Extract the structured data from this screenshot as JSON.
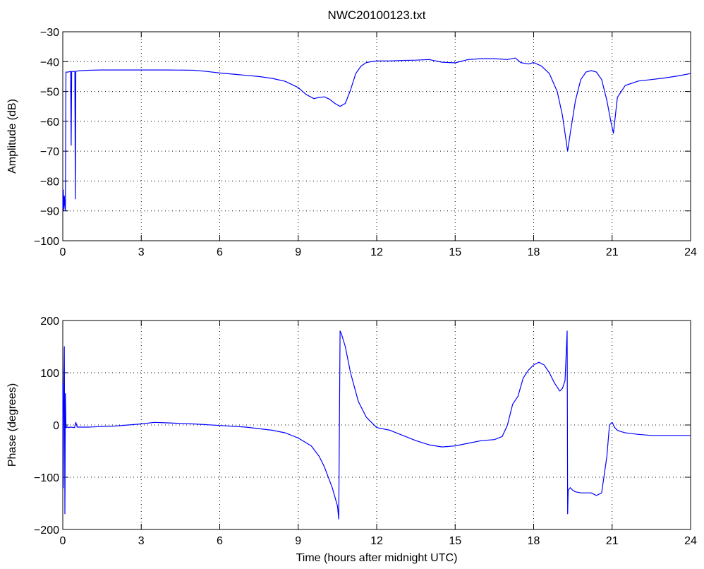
{
  "title": "NWC20100123.txt",
  "colors": {
    "line": "#0000ff",
    "axes": "#000000",
    "grid": "#000000",
    "background": "#ffffff"
  },
  "chart_data": [
    {
      "type": "line",
      "title": "NWC20100123.txt",
      "xlabel": "",
      "ylabel": "Amplitude (dB)",
      "xlim": [
        0,
        24
      ],
      "ylim": [
        -100,
        -30
      ],
      "xticks": [
        0,
        3,
        6,
        9,
        12,
        15,
        18,
        21,
        24
      ],
      "yticks": [
        -100,
        -90,
        -80,
        -70,
        -60,
        -50,
        -40,
        -30
      ],
      "xtick_labels": [
        "0",
        "3",
        "6",
        "9",
        "12",
        "15",
        "18",
        "21",
        "24"
      ],
      "ytick_labels": [
        "−100",
        "−90",
        "−80",
        "−70",
        "−60",
        "−50",
        "−40",
        "−30"
      ],
      "grid": true,
      "series": [
        {
          "color": "#0000ff",
          "x": [
            0.0,
            0.02,
            0.04,
            0.06,
            0.08,
            0.1,
            0.12,
            0.14,
            0.16,
            0.18,
            0.2,
            0.3,
            0.32,
            0.34,
            0.38,
            0.4,
            0.42,
            0.44,
            0.46,
            0.48,
            0.5,
            0.52,
            0.6,
            1.0,
            1.5,
            2.0,
            3.0,
            4.0,
            5.0,
            5.5,
            6.0,
            6.5,
            7.0,
            7.5,
            8.0,
            8.5,
            9.0,
            9.3,
            9.6,
            9.8,
            10.0,
            10.2,
            10.4,
            10.6,
            10.8,
            11.0,
            11.2,
            11.4,
            11.6,
            11.8,
            12.0,
            12.5,
            13.0,
            13.5,
            14.0,
            14.5,
            15.0,
            15.5,
            16.0,
            16.5,
            17.0,
            17.3,
            17.5,
            17.8,
            18.0,
            18.3,
            18.6,
            18.9,
            19.1,
            19.2,
            19.3,
            19.4,
            19.6,
            19.8,
            20.0,
            20.2,
            20.4,
            20.6,
            20.8,
            20.95,
            21.05,
            21.2,
            21.5,
            22.0,
            22.5,
            23.0,
            23.5,
            24.0
          ],
          "y": [
            -89,
            -83,
            -90,
            -85,
            -88,
            -90,
            -43.5,
            -43.5,
            -43.5,
            -43.5,
            -43.5,
            -43.3,
            -68,
            -43.3,
            -43.3,
            -43.3,
            -43.3,
            -43.3,
            -43.3,
            -86,
            -43.3,
            -43.2,
            -43.1,
            -42.9,
            -42.8,
            -42.8,
            -42.8,
            -42.8,
            -42.9,
            -43.3,
            -43.8,
            -44.2,
            -44.6,
            -45,
            -45.6,
            -46.6,
            -48.7,
            -51,
            -52.4,
            -52.0,
            -51.8,
            -52.6,
            -54.0,
            -55.0,
            -54.0,
            -49.5,
            -44.0,
            -41.5,
            -40.3,
            -40.0,
            -39.8,
            -39.8,
            -39.6,
            -39.5,
            -39.3,
            -40.2,
            -40.4,
            -39.3,
            -39.0,
            -39.0,
            -39.3,
            -38.8,
            -40.3,
            -40.8,
            -40.3,
            -41.5,
            -44.0,
            -50.0,
            -58.0,
            -64.0,
            -70.0,
            -64.0,
            -53.0,
            -46.0,
            -43.5,
            -43.0,
            -43.5,
            -46.0,
            -53.0,
            -60.0,
            -64.0,
            -52.0,
            -48.0,
            -46.5,
            -46.0,
            -45.5,
            -44.8,
            -44.0
          ]
        }
      ]
    },
    {
      "type": "line",
      "title": "",
      "xlabel": "Time (hours after midnight UTC)",
      "ylabel": "Phase (degrees)",
      "xlim": [
        0,
        24
      ],
      "ylim": [
        -200,
        200
      ],
      "xticks": [
        0,
        3,
        6,
        9,
        12,
        15,
        18,
        21,
        24
      ],
      "yticks": [
        -200,
        -100,
        0,
        100,
        200
      ],
      "xtick_labels": [
        "0",
        "3",
        "6",
        "9",
        "12",
        "15",
        "18",
        "21",
        "24"
      ],
      "ytick_labels": [
        "−200",
        "−100",
        "0",
        "100",
        "200"
      ],
      "grid": true,
      "series": [
        {
          "color": "#0000ff",
          "x": [
            0.0,
            0.02,
            0.04,
            0.06,
            0.08,
            0.1,
            0.12,
            0.14,
            0.16,
            0.2,
            0.3,
            0.45,
            0.5,
            0.55,
            0.7,
            1.0,
            1.5,
            2.0,
            2.5,
            3.0,
            3.5,
            4.0,
            5.0,
            6.0,
            7.0,
            8.0,
            8.5,
            9.0,
            9.5,
            9.8,
            10.0,
            10.3,
            10.5,
            10.55,
            10.6,
            10.65,
            10.8,
            11.0,
            11.3,
            11.6,
            12.0,
            12.5,
            13.0,
            13.5,
            14.0,
            14.5,
            15.0,
            15.5,
            16.0,
            16.5,
            16.8,
            17.0,
            17.2,
            17.4,
            17.6,
            17.8,
            18.0,
            18.2,
            18.4,
            18.6,
            18.8,
            19.0,
            19.1,
            19.2,
            19.28,
            19.3,
            19.32,
            19.4,
            19.5,
            19.6,
            19.8,
            20.0,
            20.2,
            20.4,
            20.6,
            20.8,
            20.9,
            21.0,
            21.1,
            21.2,
            21.3,
            21.5,
            22.0,
            22.5,
            23.0,
            23.5,
            24.0
          ],
          "y": [
            80,
            -120,
            85,
            150,
            -170,
            60,
            -5,
            -5,
            -3,
            -5,
            -4,
            -5,
            5,
            -4,
            -4,
            -4,
            -3,
            -2,
            0,
            2,
            5,
            4,
            2,
            -1,
            -4,
            -10,
            -15,
            -25,
            -40,
            -60,
            -80,
            -120,
            -155,
            -180,
            180,
            175,
            150,
            100,
            45,
            15,
            -5,
            -10,
            -20,
            -30,
            -38,
            -42,
            -40,
            -35,
            -30,
            -28,
            -22,
            0,
            40,
            55,
            90,
            105,
            115,
            120,
            115,
            100,
            80,
            65,
            70,
            85,
            180,
            -170,
            -125,
            -120,
            -125,
            -128,
            -130,
            -130,
            -130,
            -135,
            -130,
            -60,
            0,
            5,
            -5,
            -10,
            -12,
            -15,
            -18,
            -20,
            -20,
            -20,
            -20
          ]
        }
      ]
    }
  ]
}
